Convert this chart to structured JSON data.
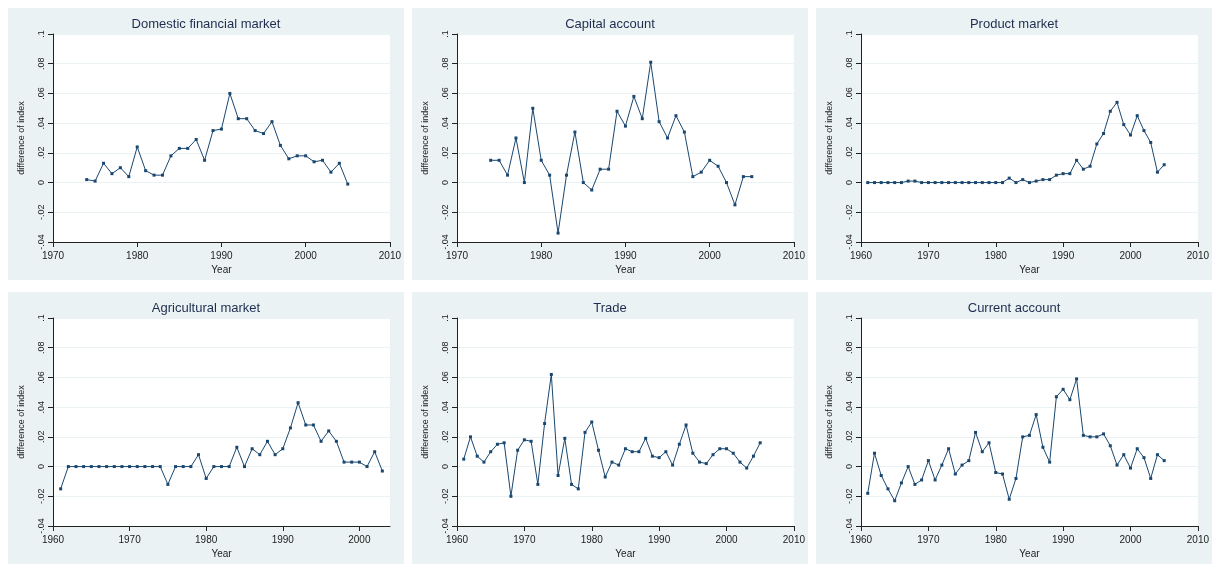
{
  "chart_data": [
    {
      "type": "line",
      "title": "Domestic financial market",
      "xlabel": "Year",
      "ylabel": "difference of index",
      "color": "#1a476f",
      "marker": "square",
      "grid": "y",
      "xlim": [
        1970,
        2010
      ],
      "xticks": [
        1970,
        1980,
        1990,
        2000,
        2010
      ],
      "ylim": [
        -0.04,
        0.1
      ],
      "yticks": [
        {
          "value": -0.04,
          "label": "-.04"
        },
        {
          "value": -0.02,
          "label": "-.02"
        },
        {
          "value": 0,
          "label": "0"
        },
        {
          "value": 0.02,
          "label": ".02"
        },
        {
          "value": 0.04,
          "label": ".04"
        },
        {
          "value": 0.06,
          "label": ".06"
        },
        {
          "value": 0.08,
          "label": ".08"
        },
        {
          "value": 0.1,
          "label": ".1"
        }
      ],
      "x": [
        1974,
        1975,
        1976,
        1977,
        1978,
        1979,
        1980,
        1981,
        1982,
        1983,
        1984,
        1985,
        1986,
        1987,
        1988,
        1989,
        1990,
        1991,
        1992,
        1993,
        1994,
        1995,
        1996,
        1997,
        1998,
        1999,
        2000,
        2001,
        2002,
        2003,
        2004,
        2005
      ],
      "values": [
        0.002,
        0.001,
        0.013,
        0.006,
        0.01,
        0.004,
        0.024,
        0.008,
        0.005,
        0.005,
        0.018,
        0.023,
        0.023,
        0.029,
        0.015,
        0.035,
        0.036,
        0.06,
        0.043,
        0.043,
        0.035,
        0.033,
        0.041,
        0.025,
        0.016,
        0.018,
        0.018,
        0.014,
        0.015,
        0.007,
        0.013,
        -0.001
      ]
    },
    {
      "type": "line",
      "title": "Capital account",
      "xlabel": "Year",
      "ylabel": "difference of index",
      "color": "#1a476f",
      "marker": "square",
      "grid": "y",
      "xlim": [
        1970,
        2010
      ],
      "xticks": [
        1970,
        1980,
        1990,
        2000,
        2010
      ],
      "ylim": [
        -0.04,
        0.1
      ],
      "yticks": [
        {
          "value": -0.04,
          "label": "-.04"
        },
        {
          "value": -0.02,
          "label": "-.02"
        },
        {
          "value": 0,
          "label": "0"
        },
        {
          "value": 0.02,
          "label": ".02"
        },
        {
          "value": 0.04,
          "label": ".04"
        },
        {
          "value": 0.06,
          "label": ".06"
        },
        {
          "value": 0.08,
          "label": ".08"
        },
        {
          "value": 0.1,
          "label": ".1"
        }
      ],
      "x": [
        1974,
        1975,
        1976,
        1977,
        1978,
        1979,
        1980,
        1981,
        1982,
        1983,
        1984,
        1985,
        1986,
        1987,
        1988,
        1989,
        1990,
        1991,
        1992,
        1993,
        1994,
        1995,
        1996,
        1997,
        1998,
        1999,
        2000,
        2001,
        2002,
        2003,
        2004,
        2005
      ],
      "values": [
        0.015,
        0.015,
        0.005,
        0.03,
        0,
        0.05,
        0.015,
        0.005,
        -0.034,
        0.005,
        0.034,
        0,
        -0.005,
        0.009,
        0.009,
        0.048,
        0.038,
        0.058,
        0.043,
        0.081,
        0.041,
        0.03,
        0.045,
        0.034,
        0.004,
        0.007,
        0.015,
        0.011,
        0,
        -0.015,
        0.004,
        0.004
      ]
    },
    {
      "type": "line",
      "title": "Product market",
      "xlabel": "Year",
      "ylabel": "difference of index",
      "color": "#1a476f",
      "marker": "square",
      "grid": "y",
      "xlim": [
        1960,
        2010
      ],
      "xticks": [
        1960,
        1970,
        1980,
        1990,
        2000,
        2010
      ],
      "ylim": [
        -0.04,
        0.1
      ],
      "yticks": [
        {
          "value": -0.04,
          "label": "-.04"
        },
        {
          "value": -0.02,
          "label": "-.02"
        },
        {
          "value": 0,
          "label": "0"
        },
        {
          "value": 0.02,
          "label": ".02"
        },
        {
          "value": 0.04,
          "label": ".04"
        },
        {
          "value": 0.06,
          "label": ".06"
        },
        {
          "value": 0.08,
          "label": ".08"
        },
        {
          "value": 0.1,
          "label": ".1"
        }
      ],
      "x": [
        1961,
        1962,
        1963,
        1964,
        1965,
        1966,
        1967,
        1968,
        1969,
        1970,
        1971,
        1972,
        1973,
        1974,
        1975,
        1976,
        1977,
        1978,
        1979,
        1980,
        1981,
        1982,
        1983,
        1984,
        1985,
        1986,
        1987,
        1988,
        1989,
        1990,
        1991,
        1992,
        1993,
        1994,
        1995,
        1996,
        1997,
        1998,
        1999,
        2000,
        2001,
        2002,
        2003,
        2004,
        2005
      ],
      "values": [
        0,
        0,
        0,
        0,
        0,
        0,
        0.001,
        0.001,
        0,
        0,
        0,
        0,
        0,
        0,
        0,
        0,
        0,
        0,
        0,
        0,
        0,
        0.003,
        0,
        0.002,
        0,
        0.001,
        0.002,
        0.002,
        0.005,
        0.006,
        0.006,
        0.015,
        0.009,
        0.011,
        0.026,
        0.033,
        0.048,
        0.054,
        0.039,
        0.032,
        0.045,
        0.035,
        0.027,
        0.007,
        0.012
      ]
    },
    {
      "type": "line",
      "title": "Agricultural market",
      "xlabel": "Year",
      "ylabel": "difference of index",
      "color": "#1a476f",
      "marker": "square",
      "grid": "y",
      "xlim": [
        1960,
        2004
      ],
      "xticks": [
        1960,
        1970,
        1980,
        1990,
        2000
      ],
      "ylim": [
        -0.04,
        0.1
      ],
      "yticks": [
        {
          "value": -0.04,
          "label": "-.04"
        },
        {
          "value": -0.02,
          "label": "-.02"
        },
        {
          "value": 0,
          "label": "0"
        },
        {
          "value": 0.02,
          "label": ".02"
        },
        {
          "value": 0.04,
          "label": ".04"
        },
        {
          "value": 0.06,
          "label": ".06"
        },
        {
          "value": 0.08,
          "label": ".08"
        },
        {
          "value": 0.1,
          "label": ".1"
        }
      ],
      "x": [
        1961,
        1962,
        1963,
        1964,
        1965,
        1966,
        1967,
        1968,
        1969,
        1970,
        1971,
        1972,
        1973,
        1974,
        1975,
        1976,
        1977,
        1978,
        1979,
        1980,
        1981,
        1982,
        1983,
        1984,
        1985,
        1986,
        1987,
        1988,
        1989,
        1990,
        1991,
        1992,
        1993,
        1994,
        1995,
        1996,
        1997,
        1998,
        1999,
        2000,
        2001,
        2002,
        2003
      ],
      "values": [
        -0.015,
        0,
        0,
        0,
        0,
        0,
        0,
        0,
        0,
        0,
        0,
        0,
        0,
        0,
        -0.012,
        0,
        0,
        0,
        0.008,
        -0.008,
        0,
        0,
        0,
        0.013,
        0,
        0.012,
        0.008,
        0.017,
        0.008,
        0.012,
        0.026,
        0.043,
        0.028,
        0.028,
        0.017,
        0.024,
        0.017,
        0.003,
        0.003,
        0.003,
        0,
        0.01,
        -0.003
      ]
    },
    {
      "type": "line",
      "title": "Trade",
      "xlabel": "Year",
      "ylabel": "difference of index",
      "color": "#1a476f",
      "marker": "square",
      "grid": "y",
      "xlim": [
        1960,
        2010
      ],
      "xticks": [
        1960,
        1970,
        1980,
        1990,
        2000,
        2010
      ],
      "ylim": [
        -0.04,
        0.1
      ],
      "yticks": [
        {
          "value": -0.04,
          "label": "-.04"
        },
        {
          "value": -0.02,
          "label": "-.02"
        },
        {
          "value": 0,
          "label": "0"
        },
        {
          "value": 0.02,
          "label": ".02"
        },
        {
          "value": 0.04,
          "label": ".04"
        },
        {
          "value": 0.06,
          "label": ".06"
        },
        {
          "value": 0.08,
          "label": ".08"
        },
        {
          "value": 0.1,
          "label": ".1"
        }
      ],
      "x": [
        1961,
        1962,
        1963,
        1964,
        1965,
        1966,
        1967,
        1968,
        1969,
        1970,
        1971,
        1972,
        1973,
        1974,
        1975,
        1976,
        1977,
        1978,
        1979,
        1980,
        1981,
        1982,
        1983,
        1984,
        1985,
        1986,
        1987,
        1988,
        1989,
        1990,
        1991,
        1992,
        1993,
        1994,
        1995,
        1996,
        1997,
        1998,
        1999,
        2000,
        2001,
        2002,
        2003,
        2004,
        2005
      ],
      "values": [
        0.005,
        0.02,
        0.007,
        0.003,
        0.01,
        0.015,
        0.016,
        -0.02,
        0.011,
        0.018,
        0.017,
        -0.012,
        0.029,
        0.062,
        -0.006,
        0.019,
        -0.012,
        -0.015,
        0.023,
        0.03,
        0.011,
        -0.007,
        0.003,
        0.001,
        0.012,
        0.01,
        0.01,
        0.019,
        0.007,
        0.006,
        0.01,
        0.001,
        0.015,
        0.028,
        0.009,
        0.003,
        0.002,
        0.008,
        0.012,
        0.012,
        0.009,
        0.003,
        -0.001,
        0.007,
        0.016
      ]
    },
    {
      "type": "line",
      "title": "Current account",
      "xlabel": "Year",
      "ylabel": "difference of index",
      "color": "#1a476f",
      "marker": "square",
      "grid": "y",
      "xlim": [
        1960,
        2010
      ],
      "xticks": [
        1960,
        1970,
        1980,
        1990,
        2000,
        2010
      ],
      "ylim": [
        -0.04,
        0.1
      ],
      "yticks": [
        {
          "value": -0.04,
          "label": "-.04"
        },
        {
          "value": -0.02,
          "label": "-.02"
        },
        {
          "value": 0,
          "label": "0"
        },
        {
          "value": 0.02,
          "label": ".02"
        },
        {
          "value": 0.04,
          "label": ".04"
        },
        {
          "value": 0.06,
          "label": ".06"
        },
        {
          "value": 0.08,
          "label": ".08"
        },
        {
          "value": 0.1,
          "label": ".1"
        }
      ],
      "x": [
        1961,
        1962,
        1963,
        1964,
        1965,
        1966,
        1967,
        1968,
        1969,
        1970,
        1971,
        1972,
        1973,
        1974,
        1975,
        1976,
        1977,
        1978,
        1979,
        1980,
        1981,
        1982,
        1983,
        1984,
        1985,
        1986,
        1987,
        1988,
        1989,
        1990,
        1991,
        1992,
        1993,
        1994,
        1995,
        1996,
        1997,
        1998,
        1999,
        2000,
        2001,
        2002,
        2003,
        2004,
        2005
      ],
      "values": [
        -0.018,
        0.009,
        -0.006,
        -0.015,
        -0.023,
        -0.011,
        0,
        -0.012,
        -0.009,
        0.004,
        -0.009,
        0.001,
        0.012,
        -0.005,
        0.001,
        0.004,
        0.023,
        0.01,
        0.016,
        -0.004,
        -0.005,
        -0.022,
        -0.008,
        0.02,
        0.021,
        0.035,
        0.013,
        0.003,
        0.047,
        0.052,
        0.045,
        0.059,
        0.021,
        0.02,
        0.02,
        0.022,
        0.014,
        0.001,
        0.008,
        -0.001,
        0.012,
        0.006,
        -0.008,
        0.008,
        0.004
      ]
    }
  ]
}
